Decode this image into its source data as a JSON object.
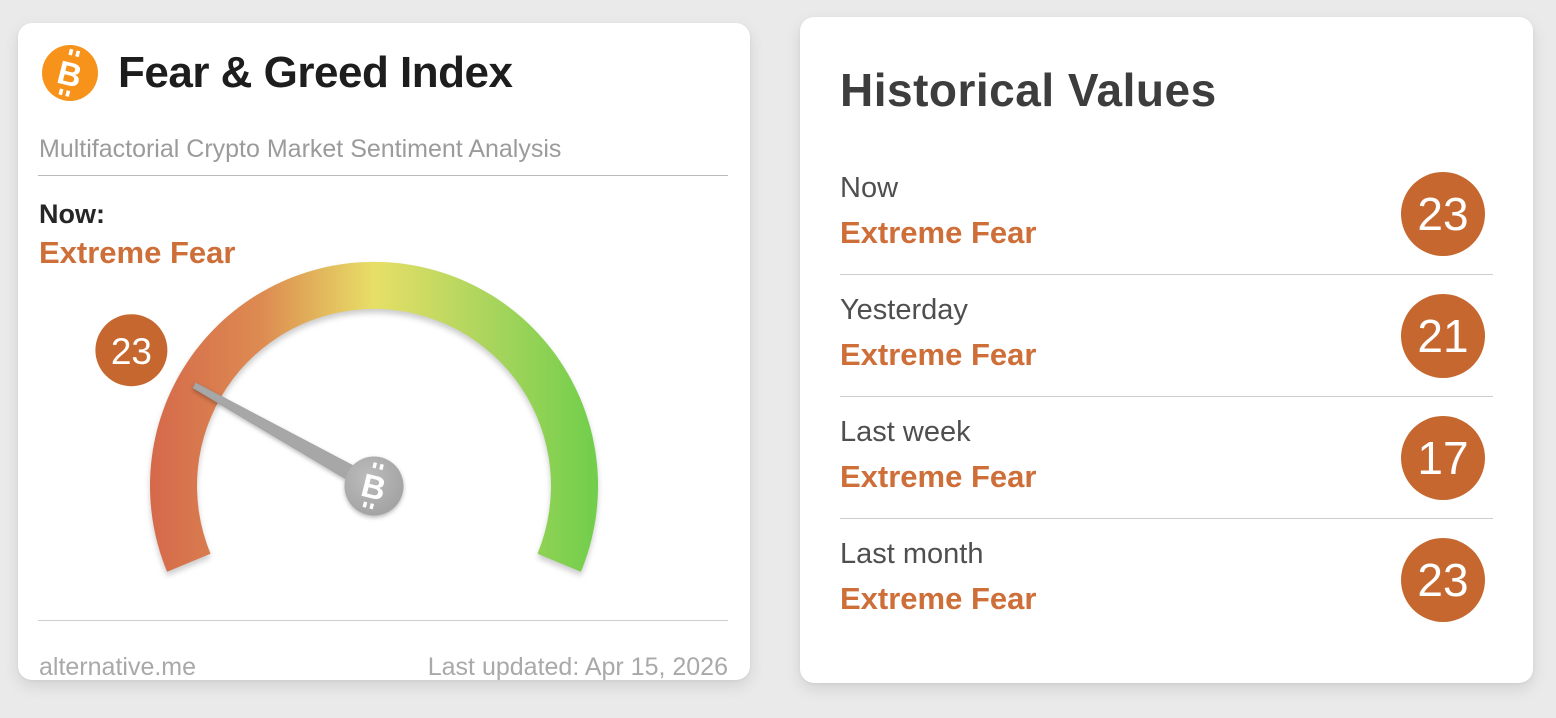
{
  "left_card": {
    "title": "Fear & Greed Index",
    "subtitle": "Multifactorial Crypto Market Sentiment Analysis",
    "now_label": "Now:",
    "now_value": "Extreme Fear",
    "source": "alternative.me",
    "last_updated": "Last updated: Apr 15, 2026"
  },
  "right_card": {
    "title": "Historical Values",
    "rows": [
      {
        "period": "Now",
        "classification": "Extreme Fear",
        "value": 23
      },
      {
        "period": "Yesterday",
        "classification": "Extreme Fear",
        "value": 21
      },
      {
        "period": "Last week",
        "classification": "Extreme Fear",
        "value": 17
      },
      {
        "period": "Last month",
        "classification": "Extreme Fear",
        "value": 23
      }
    ]
  },
  "icons": {
    "bitcoin_glyph": "B"
  },
  "colors": {
    "accent_text": "#ce6e38",
    "badge": "#c5672e",
    "bitcoin_orange": "#f7931a",
    "needle": "#a7a7a7",
    "hub": "#ababab",
    "gauge_gradient": [
      "#d5694b",
      "#dd8b51",
      "#e7df67",
      "#abd55d",
      "#70ce4b"
    ]
  },
  "chart_data": {
    "type": "gauge",
    "title": "Fear & Greed Index",
    "value": 23,
    "classification": "Extreme Fear",
    "min": 0,
    "max": 100,
    "start_angle_deg": 202.5,
    "sweep_deg": 225,
    "color_scale": "red (extreme fear, 0) to yellow (50) to green (extreme greed, 100)",
    "historical": [
      {
        "period": "Now",
        "classification": "Extreme Fear",
        "value": 23
      },
      {
        "period": "Yesterday",
        "classification": "Extreme Fear",
        "value": 21
      },
      {
        "period": "Last week",
        "classification": "Extreme Fear",
        "value": 17
      },
      {
        "period": "Last month",
        "classification": "Extreme Fear",
        "value": 23
      }
    ]
  }
}
